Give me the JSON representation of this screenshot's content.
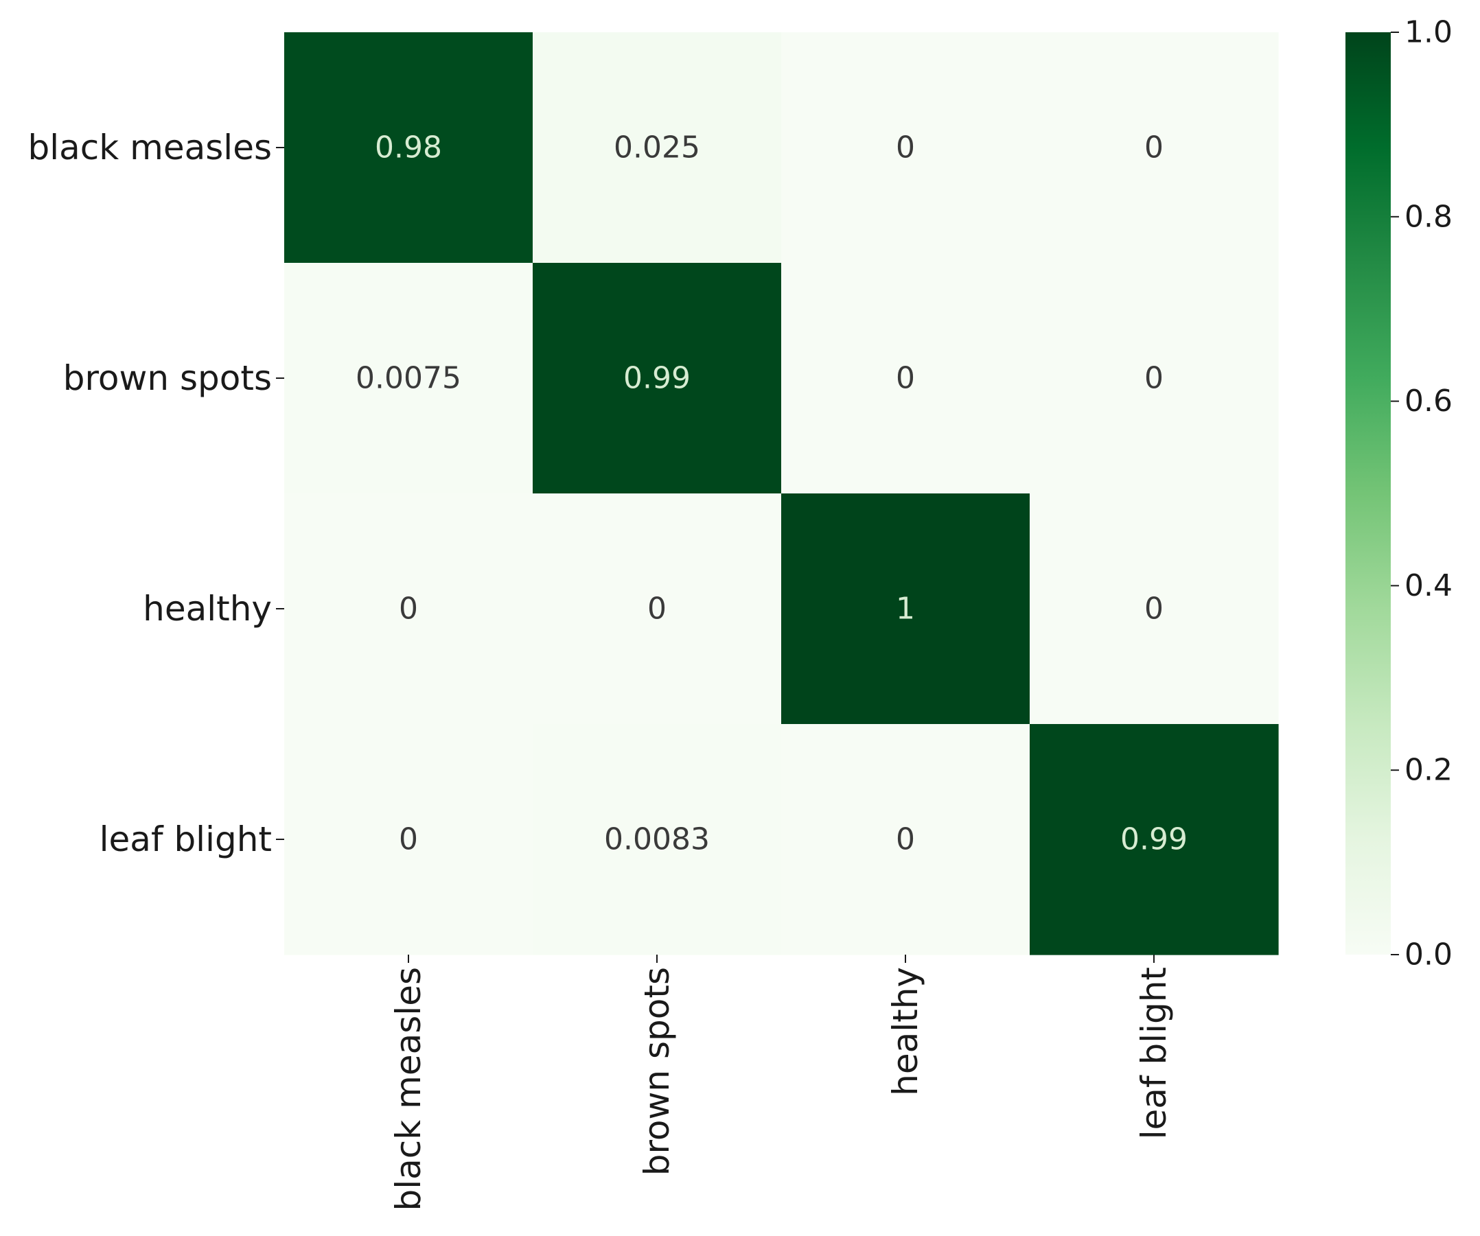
{
  "chart_data": {
    "type": "heatmap",
    "title": "",
    "xlabel": "",
    "ylabel": "",
    "rows": [
      "black measles",
      "brown spots",
      "healthy",
      "leaf blight"
    ],
    "columns": [
      "black measles",
      "brown spots",
      "healthy",
      "leaf blight"
    ],
    "row_labels": [
      "black measles",
      "brown spots",
      "healthy",
      "leaf blight"
    ],
    "column_labels": [
      "black measles",
      "brown spots",
      "healthy",
      "leaf blight"
    ],
    "values": [
      [
        0.98,
        0.025,
        0,
        0
      ],
      [
        0.0075,
        0.99,
        0,
        0
      ],
      [
        0,
        0,
        1,
        0
      ],
      [
        0,
        0.0083,
        0,
        0.99
      ]
    ],
    "cell_labels": [
      [
        "0.98",
        "0.025",
        "0",
        "0"
      ],
      [
        "0.0075",
        "0.99",
        "0",
        "0"
      ],
      [
        "0",
        "0",
        "1",
        "0"
      ],
      [
        "0",
        "0.0083",
        "0",
        "0.99"
      ]
    ],
    "colorbar": {
      "range": [
        0.0,
        1.0
      ],
      "ticks": [
        0.0,
        0.2,
        0.4,
        0.6,
        0.8,
        1.0
      ],
      "tick_labels": [
        "0.0",
        "0.2",
        "0.4",
        "0.6",
        "0.8",
        "1.0"
      ],
      "colormap": "Greens",
      "low_color": "#f7fcf5",
      "high_color": "#00441b"
    },
    "annotation_colors": {
      "dark_cell_text": "#d7ecd2",
      "light_cell_text": "#3a3a3a"
    }
  }
}
